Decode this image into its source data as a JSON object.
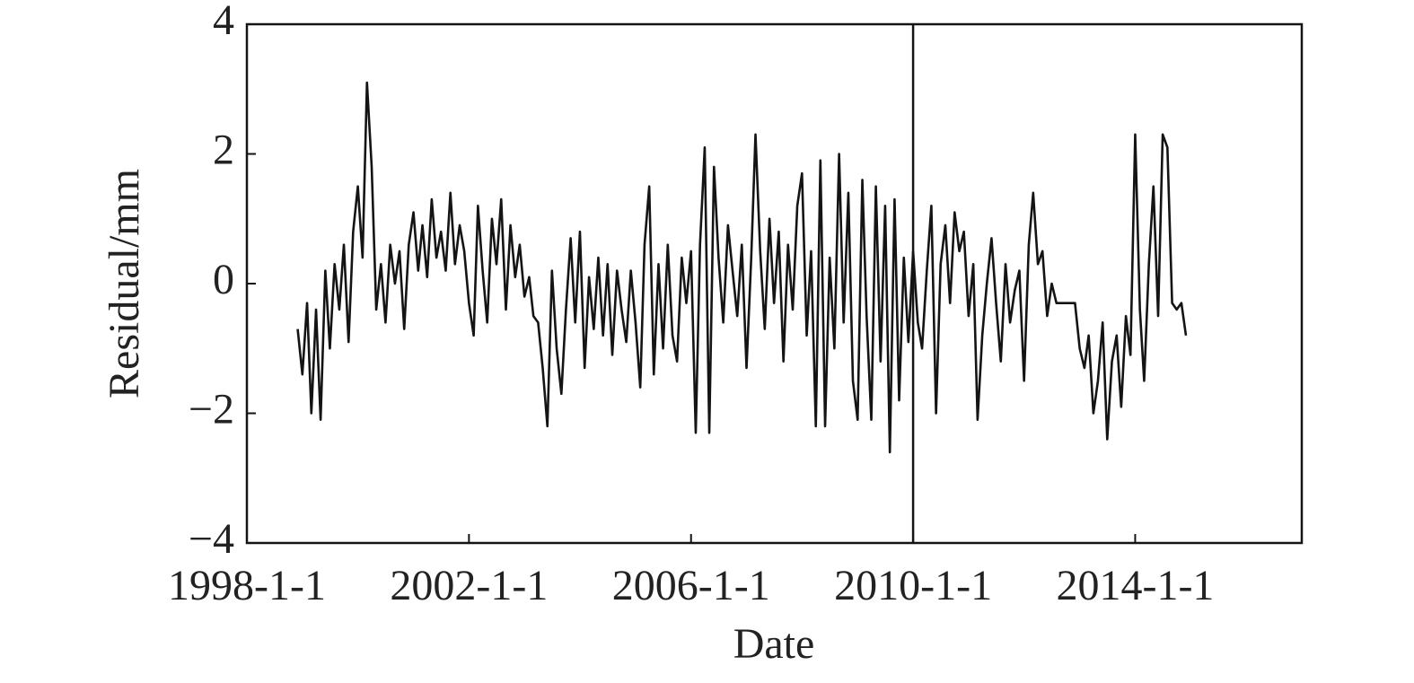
{
  "chart_data": {
    "type": "line",
    "x_label": "Date",
    "y_label": "Residual/mm",
    "x": [
      "1998-12-1",
      "1999-1-1",
      "1999-2-1",
      "1999-3-1",
      "1999-4-1",
      "1999-5-1",
      "1999-6-1",
      "1999-7-1",
      "1999-8-1",
      "1999-9-1",
      "1999-10-1",
      "1999-11-1",
      "1999-12-1",
      "2000-1-1",
      "2000-2-1",
      "2000-3-1",
      "2000-4-1",
      "2000-5-1",
      "2000-6-1",
      "2000-7-1",
      "2000-8-1",
      "2000-9-1",
      "2000-10-1",
      "2000-11-1",
      "2000-12-1",
      "2001-1-1",
      "2001-2-1",
      "2001-3-1",
      "2001-4-1",
      "2001-5-1",
      "2001-6-1",
      "2001-7-1",
      "2001-8-1",
      "2001-9-1",
      "2001-10-1",
      "2001-11-1",
      "2001-12-1",
      "2002-1-1",
      "2002-2-1",
      "2002-3-1",
      "2002-4-1",
      "2002-5-1",
      "2002-6-1",
      "2002-7-1",
      "2002-8-1",
      "2002-9-1",
      "2002-10-1",
      "2002-11-1",
      "2002-12-1",
      "2003-1-1",
      "2003-2-1",
      "2003-3-1",
      "2003-4-1",
      "2003-5-1",
      "2003-6-1",
      "2003-7-1",
      "2003-8-1",
      "2003-9-1",
      "2003-10-1",
      "2003-11-1",
      "2003-12-1",
      "2004-1-1",
      "2004-2-1",
      "2004-3-1",
      "2004-4-1",
      "2004-5-1",
      "2004-6-1",
      "2004-7-1",
      "2004-8-1",
      "2004-9-1",
      "2004-10-1",
      "2004-11-1",
      "2004-12-1",
      "2005-1-1",
      "2005-2-1",
      "2005-3-1",
      "2005-4-1",
      "2005-5-1",
      "2005-6-1",
      "2005-7-1",
      "2005-8-1",
      "2005-9-1",
      "2005-10-1",
      "2005-11-1",
      "2005-12-1",
      "2006-1-1",
      "2006-2-1",
      "2006-3-1",
      "2006-4-1",
      "2006-5-1",
      "2006-6-1",
      "2006-7-1",
      "2006-8-1",
      "2006-9-1",
      "2006-10-1",
      "2006-11-1",
      "2006-12-1",
      "2007-1-1",
      "2007-2-1",
      "2007-3-1",
      "2007-4-1",
      "2007-5-1",
      "2007-6-1",
      "2007-7-1",
      "2007-8-1",
      "2007-9-1",
      "2007-10-1",
      "2007-11-1",
      "2007-12-1",
      "2008-1-1",
      "2008-2-1",
      "2008-3-1",
      "2008-4-1",
      "2008-5-1",
      "2008-6-1",
      "2008-7-1",
      "2008-8-1",
      "2008-9-1",
      "2008-10-1",
      "2008-11-1",
      "2008-12-1",
      "2009-1-1",
      "2009-2-1",
      "2009-3-1",
      "2009-4-1",
      "2009-5-1",
      "2009-6-1",
      "2009-7-1",
      "2009-8-1",
      "2009-9-1",
      "2009-10-1",
      "2009-11-1",
      "2009-12-1",
      "2010-1-1",
      "2010-2-1",
      "2010-3-1",
      "2010-4-1",
      "2010-5-1",
      "2010-6-1",
      "2010-7-1",
      "2010-8-1",
      "2010-9-1",
      "2010-10-1",
      "2010-11-1",
      "2010-12-1",
      "2011-1-1",
      "2011-2-1",
      "2011-3-1",
      "2011-4-1",
      "2011-5-1",
      "2011-6-1",
      "2011-7-1",
      "2011-8-1",
      "2011-9-1",
      "2011-10-1",
      "2011-11-1",
      "2011-12-1",
      "2012-1-1",
      "2012-2-1",
      "2012-3-1",
      "2012-4-1",
      "2012-5-1",
      "2012-6-1",
      "2012-7-1",
      "2012-8-1",
      "2012-12-1",
      "2013-1-1",
      "2013-2-1",
      "2013-3-1",
      "2013-4-1",
      "2013-5-1",
      "2013-6-1",
      "2013-7-1",
      "2013-8-1",
      "2013-9-1",
      "2013-10-1",
      "2013-11-1",
      "2013-12-1",
      "2014-1-1",
      "2014-2-1",
      "2014-3-1",
      "2014-4-1",
      "2014-5-1",
      "2014-6-1",
      "2014-7-1",
      "2014-8-1",
      "2014-9-1",
      "2014-10-1",
      "2014-11-1",
      "2014-12-1"
    ],
    "series": [
      {
        "color": "#141414",
        "values": [
          -0.7,
          -1.4,
          -0.3,
          -2.0,
          -0.4,
          -2.1,
          0.2,
          -1.0,
          0.3,
          -0.4,
          0.6,
          -0.9,
          0.8,
          1.5,
          0.4,
          3.1,
          1.8,
          -0.4,
          0.3,
          -0.6,
          0.6,
          0.0,
          0.5,
          -0.7,
          0.6,
          1.1,
          0.2,
          0.9,
          0.1,
          1.3,
          0.4,
          0.8,
          0.2,
          1.4,
          0.3,
          0.9,
          0.5,
          -0.3,
          -0.8,
          1.2,
          0.2,
          -0.6,
          1.0,
          0.3,
          1.3,
          -0.4,
          0.9,
          0.1,
          0.6,
          -0.2,
          0.1,
          -0.5,
          -0.6,
          -1.3,
          -2.2,
          0.2,
          -1.0,
          -1.7,
          -0.4,
          0.7,
          -0.6,
          0.8,
          -1.3,
          0.1,
          -0.7,
          0.4,
          -0.8,
          0.3,
          -1.1,
          0.2,
          -0.4,
          -0.9,
          0.2,
          -0.6,
          -1.6,
          0.6,
          1.5,
          -1.4,
          0.3,
          -1.0,
          0.6,
          -0.8,
          -1.2,
          0.4,
          -0.3,
          0.5,
          -2.3,
          0.6,
          2.1,
          -2.3,
          1.8,
          0.4,
          -0.6,
          0.9,
          0.2,
          -0.5,
          0.6,
          -1.3,
          0.4,
          2.3,
          0.5,
          -0.7,
          1.0,
          -0.3,
          0.8,
          -1.2,
          0.6,
          -0.4,
          1.2,
          1.7,
          -0.8,
          0.5,
          -2.2,
          1.9,
          -2.2,
          0.4,
          -1.0,
          2.0,
          -0.6,
          1.4,
          -1.5,
          -2.1,
          1.6,
          -0.5,
          -2.1,
          1.5,
          -1.2,
          1.2,
          -2.6,
          1.3,
          -1.8,
          0.4,
          -0.9,
          0.5,
          -0.6,
          -1.0,
          0.2,
          1.2,
          -2.0,
          0.3,
          0.9,
          -0.3,
          1.1,
          0.5,
          0.8,
          -0.5,
          0.3,
          -2.1,
          -0.8,
          0.0,
          0.7,
          -0.3,
          -1.2,
          0.3,
          -0.6,
          -0.1,
          0.2,
          -1.5,
          0.6,
          1.4,
          0.3,
          0.5,
          -0.5,
          0.0,
          -0.3,
          -0.3,
          -1.0,
          -1.3,
          -0.8,
          -2.0,
          -1.5,
          -0.6,
          -2.4,
          -1.2,
          -0.8,
          -1.9,
          -0.5,
          -1.1,
          2.3,
          -0.4,
          -1.5,
          0.3,
          1.5,
          -0.5,
          2.3,
          2.1,
          -0.3,
          -0.4,
          -0.3,
          -0.8
        ]
      }
    ],
    "xlim": [
      "1998-1-1",
      "2017-1-1"
    ],
    "xticks": [
      "1998-1-1",
      "2002-1-1",
      "2006-1-1",
      "2010-1-1",
      "2014-1-1"
    ],
    "ylim": [
      -4,
      4
    ],
    "yticks": [
      {
        "value": -4,
        "label": "−4"
      },
      {
        "value": -2,
        "label": "−2"
      },
      0,
      2,
      4
    ],
    "vlines": [
      "2010-1-1"
    ],
    "grid": false
  }
}
